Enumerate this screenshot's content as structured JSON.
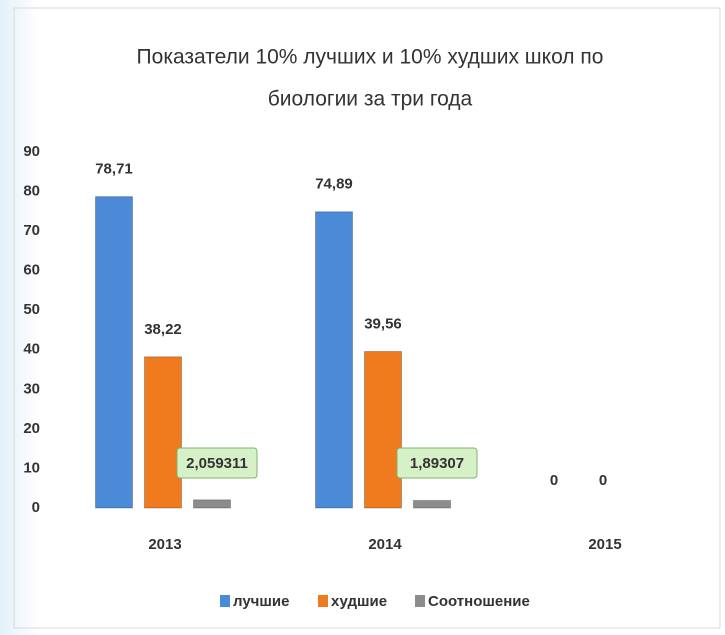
{
  "chart_data": {
    "type": "bar",
    "title": [
      "Показатели 10% лучших и 10% худших школ по",
      "биологии за три года"
    ],
    "categories": [
      "2013",
      "2014",
      "2015"
    ],
    "series": [
      {
        "name": "лучшие",
        "color": "#4a8ad6",
        "values": [
          78.71,
          74.89,
          0
        ],
        "value_labels": [
          "78,71",
          "74,89",
          "0"
        ]
      },
      {
        "name": "худшие",
        "color": "#f07a1e",
        "values": [
          38.22,
          39.56,
          0
        ],
        "value_labels": [
          "38,22",
          "39,56",
          "0"
        ]
      },
      {
        "name": "Соотношение",
        "color": "#8c8c8c",
        "values": [
          2.059311,
          1.89307,
          null
        ],
        "value_labels": [
          "2,059311",
          "1,89307",
          null
        ]
      }
    ],
    "ylim": [
      0,
      90
    ],
    "yticks": [
      0,
      10,
      20,
      30,
      40,
      50,
      60,
      70,
      80,
      90
    ],
    "grid": false,
    "legend": "bottom"
  }
}
